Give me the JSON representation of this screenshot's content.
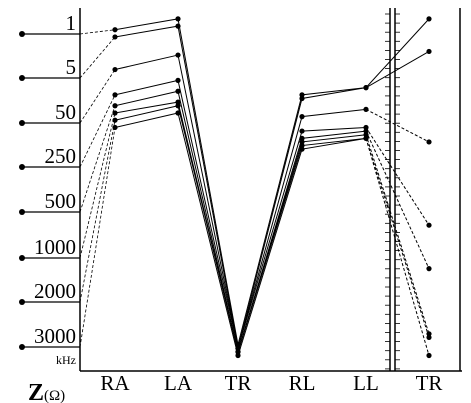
{
  "chart_data": {
    "type": "line",
    "categories": [
      "RA",
      "LA",
      "TR",
      "RL",
      "LL",
      "TR"
    ],
    "ylim": [
      0,
      100
    ],
    "unit_label": "kHz",
    "y_label": {
      "symbol": "Z",
      "unit": "(Ω)"
    },
    "series": [
      {
        "name": "1",
        "color": "#000",
        "tail": "solid",
        "values": [
          94,
          97,
          7,
          76,
          78,
          97
        ]
      },
      {
        "name": "5",
        "color": "#000",
        "tail": "solid",
        "values": [
          92,
          95,
          6,
          75,
          78,
          88
        ]
      },
      {
        "name": "50",
        "color": "#000",
        "tail": "dashed",
        "values": [
          83,
          87,
          6,
          70,
          72,
          63
        ]
      },
      {
        "name": "250",
        "color": "#000",
        "tail": "dashed",
        "values": [
          76,
          80,
          6,
          66,
          67,
          40
        ]
      },
      {
        "name": "500",
        "color": "#000",
        "tail": "dashed",
        "values": [
          73,
          77,
          5,
          64,
          66,
          28
        ]
      },
      {
        "name": "1000",
        "color": "#000",
        "tail": "dashed",
        "values": [
          71,
          74,
          5,
          63,
          65,
          10
        ]
      },
      {
        "name": "2000",
        "color": "#000",
        "tail": "dashed",
        "values": [
          69,
          73,
          5,
          62,
          64,
          9
        ]
      },
      {
        "name": "3000",
        "color": "#000",
        "tail": "dashed",
        "values": [
          67,
          71,
          4,
          61,
          64,
          4
        ]
      }
    ]
  }
}
